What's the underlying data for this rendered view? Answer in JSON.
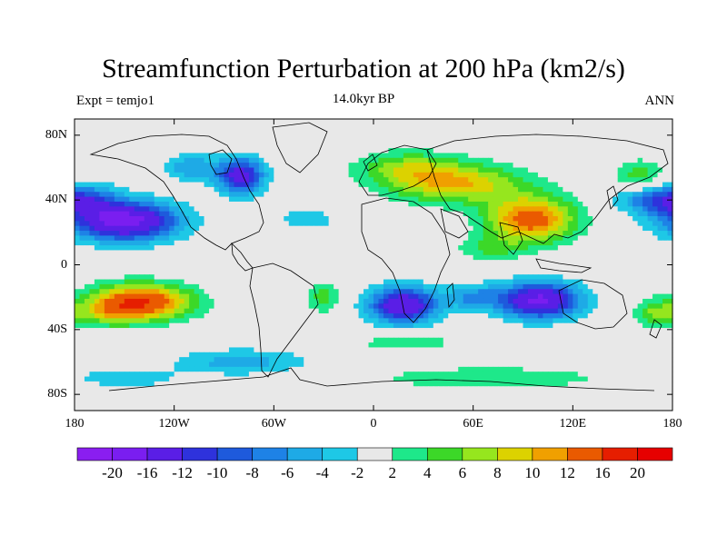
{
  "header": {
    "title": "Streamfunction Perturbation at 200 hPa (km2/s)",
    "left": "Expt = temjo1",
    "center": "14.0kyr BP",
    "right": "ANN"
  },
  "axes": {
    "lat_labels": [
      "80N",
      "40N",
      "0",
      "40S",
      "80S"
    ],
    "lat_values": [
      80,
      40,
      0,
      -40,
      -80
    ],
    "lon_labels": [
      "180",
      "120W",
      "60W",
      "0",
      "60E",
      "120E",
      "180"
    ],
    "lon_values": [
      -180,
      -120,
      -60,
      0,
      60,
      120,
      180
    ],
    "lat_range": [
      -90,
      90
    ],
    "lon_range": [
      -180,
      180
    ]
  },
  "colorbar": {
    "labels": [
      "-20",
      "-16",
      "-12",
      "-10",
      "-8",
      "-6",
      "-4",
      "-2",
      "2",
      "4",
      "6",
      "8",
      "10",
      "12",
      "16",
      "20"
    ],
    "colors": [
      "#8a1ef0",
      "#7a1ef0",
      "#5a1ee6",
      "#2e32dc",
      "#1e5adc",
      "#1e82e6",
      "#1eaae6",
      "#1ec8e6",
      "#e8e8e8",
      "#1ee88a",
      "#3cd828",
      "#96e61e",
      "#dcd200",
      "#f0a000",
      "#ea5a00",
      "#e61e00",
      "#e60000"
    ]
  },
  "field": {
    "blobs": [
      {
        "lon": -150,
        "lat": 27,
        "slon": 32,
        "slat": 12,
        "amp": -18
      },
      {
        "lon": -175,
        "lat": 40,
        "slon": 20,
        "slat": 10,
        "amp": -8
      },
      {
        "lon": -80,
        "lat": 55,
        "slon": 14,
        "slat": 11,
        "amp": -14
      },
      {
        "lon": -40,
        "lat": 28,
        "slon": 16,
        "slat": 6,
        "amp": -4
      },
      {
        "lon": 50,
        "lat": 50,
        "slon": 40,
        "slat": 12,
        "amp": 10
      },
      {
        "lon": 95,
        "lat": 28,
        "slon": 26,
        "slat": 14,
        "amp": 14
      },
      {
        "lon": 20,
        "lat": 60,
        "slon": 30,
        "slat": 10,
        "amp": 6
      },
      {
        "lon": -140,
        "lat": -23,
        "slon": 30,
        "slat": 11,
        "amp": 16
      },
      {
        "lon": -160,
        "lat": -30,
        "slon": 20,
        "slat": 8,
        "amp": 5
      },
      {
        "lon": -30,
        "lat": -20,
        "slon": 10,
        "slat": 10,
        "amp": 5
      },
      {
        "lon": 18,
        "lat": -25,
        "slon": 20,
        "slat": 11,
        "amp": -16
      },
      {
        "lon": 100,
        "lat": -22,
        "slon": 24,
        "slat": 11,
        "amp": -17
      },
      {
        "lon": 60,
        "lat": -20,
        "slon": 16,
        "slat": 8,
        "amp": -6
      },
      {
        "lon": -80,
        "lat": -60,
        "slon": 40,
        "slat": 8,
        "amp": -5
      },
      {
        "lon": -150,
        "lat": -70,
        "slon": 30,
        "slat": 6,
        "amp": -4
      },
      {
        "lon": 70,
        "lat": -70,
        "slon": 70,
        "slat": 7,
        "amp": 4
      },
      {
        "lon": 20,
        "lat": -48,
        "slon": 40,
        "slat": 6,
        "amp": 3
      },
      {
        "lon": 70,
        "lat": 10,
        "slon": 20,
        "slat": 8,
        "amp": 4
      },
      {
        "lon": 160,
        "lat": 55,
        "slon": 15,
        "slat": 10,
        "amp": 5
      },
      {
        "lon": 165,
        "lat": 40,
        "slon": 20,
        "slat": 8,
        "amp": -6
      },
      {
        "lon": 170,
        "lat": -30,
        "slon": 12,
        "slat": 8,
        "amp": 6
      },
      {
        "lon": -110,
        "lat": 60,
        "slon": 15,
        "slat": 8,
        "amp": -6
      }
    ]
  }
}
